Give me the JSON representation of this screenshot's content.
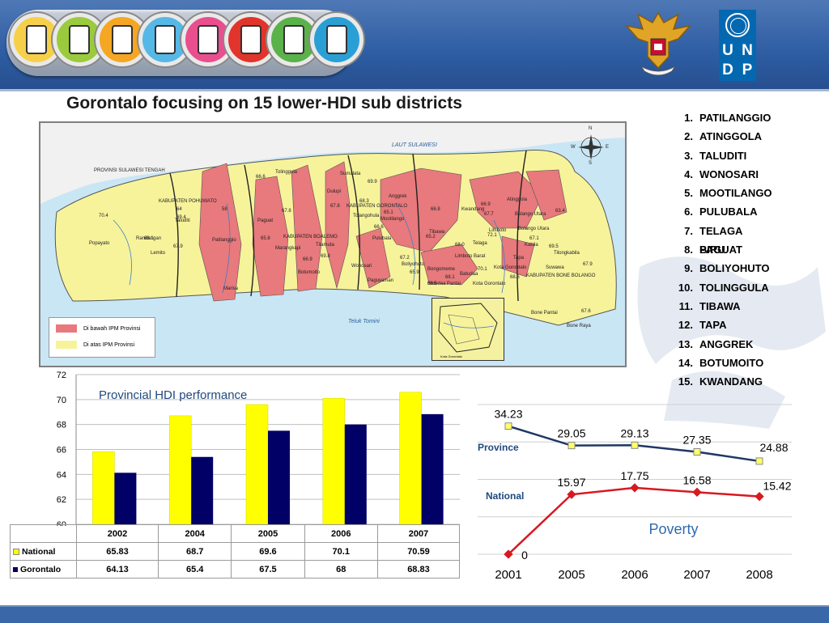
{
  "title": "Gorontalo focusing on 15 lower-HDI sub districts",
  "logos": {
    "undp_letters": [
      "U",
      "N",
      "D",
      "P"
    ],
    "mdg_icons": [
      "hunger-icon",
      "education-icon",
      "gender-icon",
      "child-health-icon",
      "maternal-health-icon",
      "disease-icon",
      "environment-icon",
      "partnership-icon"
    ]
  },
  "map": {
    "sea_label": "LAUT SULAWESI",
    "bay_label": "Teluk Tomini",
    "region_label": "PROVINSI SULAWESI TENGAH",
    "district_labels": [
      "KABUPATEN POHUWATO",
      "KABUPATEN BOALEMO",
      "KABUPATEN GORONTALO",
      "KABUPATEN BONE BOLANGO",
      "Kota Gorontalo"
    ],
    "subdistrict_labels": [
      "Tolinggula",
      "Sumalata",
      "Dulupi",
      "Anggrek",
      "Kwandang",
      "Atinggola",
      "Popayato",
      "Randangan",
      "Taluditi",
      "Paguat",
      "Marisa",
      "Lemito",
      "Patilanggio",
      "Marangkapi",
      "Tilamuta",
      "Botumoito",
      "Tolangohula",
      "Limboto",
      "Telaga",
      "Paguyaman",
      "Wonosari",
      "Mootilango",
      "Bolango Utara",
      "Tilongkabila",
      "Tapa",
      "Kabila",
      "Batudaa",
      "Suwawa",
      "Bone Pantai",
      "Bone Raya",
      "Bulango Utara",
      "Limboto Barat",
      "Bongomeme",
      "Tibawa",
      "Pulubala",
      "Boliyohuto",
      "Batudaa Pantai",
      "Kota Gorontalo"
    ],
    "ipm_values": [
      "70.4",
      "69.4",
      "64",
      "58",
      "68.1",
      "67.9",
      "66.6",
      "67.8",
      "65.8",
      "66.9",
      "69.8",
      "69.9",
      "67.8",
      "68.3",
      "65.1",
      "66.8",
      "66.9",
      "63.4",
      "65.2",
      "66.6",
      "72.1",
      "67.1",
      "70.1",
      "68.6",
      "65.9",
      "67.2",
      "69.5",
      "67.9",
      "67.6",
      "68.5",
      "67.7",
      "68.0",
      "68.1"
    ],
    "legend": [
      {
        "label": "Di bawah IPM Provinsi",
        "color": "#e8797c"
      },
      {
        "label": "Di atas IPM Provinsi",
        "color": "#f7f39b"
      }
    ],
    "compass": {
      "n": "N",
      "s": "S",
      "e": "E",
      "w": "W"
    }
  },
  "subdistricts": [
    {
      "num": "1.",
      "name": "PATILANGGIO"
    },
    {
      "num": "2.",
      "name": "ATINGGOLA"
    },
    {
      "num": "3.",
      "name": "TALUDITI"
    },
    {
      "num": "4.",
      "name": "WONOSARI"
    },
    {
      "num": "5.",
      "name": "MOOTILANGO"
    },
    {
      "num": "6.",
      "name": "PULUBALA"
    },
    {
      "num": "7.",
      "name": "TELAGA BIRU"
    },
    {
      "num": "8.",
      "name": "PAGUAT"
    },
    {
      "num": "9.",
      "name": "BOLIYOHUTO"
    },
    {
      "num": "10.",
      "name": "TOLINGGULA"
    },
    {
      "num": "11.",
      "name": "TIBAWA"
    },
    {
      "num": "12.",
      "name": "TAPA"
    },
    {
      "num": "13.",
      "name": "ANGGREK"
    },
    {
      "num": "14.",
      "name": "BOTUMOITO"
    },
    {
      "num": "15.",
      "name": "KWANDANG"
    }
  ],
  "chart_data": [
    {
      "type": "bar",
      "title": "Provincial HDI performance",
      "categories": [
        "2002",
        "2004",
        "2005",
        "2006",
        "2007"
      ],
      "series": [
        {
          "name": "National",
          "color": "#ffff00",
          "values": [
            65.83,
            68.7,
            69.6,
            70.1,
            70.59
          ]
        },
        {
          "name": "Gorontalo",
          "color": "#000066",
          "values": [
            64.13,
            65.4,
            67.5,
            68,
            68.83
          ]
        }
      ],
      "table_values": {
        "National": [
          "65.83",
          "68.7",
          "69.6",
          "70.1",
          "70.59"
        ],
        "Gorontalo": [
          "64.13",
          "65.4",
          "67.5",
          "68",
          "68.83"
        ]
      },
      "ylim": [
        60,
        72
      ],
      "yticks": [
        60,
        62,
        64,
        66,
        68,
        70,
        72
      ],
      "grid": true
    },
    {
      "type": "line",
      "title": "Poverty",
      "x": [
        "2001",
        "2005",
        "2006",
        "2007",
        "2008"
      ],
      "series": [
        {
          "name": "Province",
          "color": "#1f3864",
          "values": [
            34.23,
            29.05,
            29.13,
            27.35,
            24.88
          ],
          "labels": [
            "34.23",
            "29.05",
            "29.13",
            "27.35",
            "24.88"
          ]
        },
        {
          "name": "National",
          "color": "#d71920",
          "values": [
            0,
            15.97,
            17.75,
            16.58,
            15.42
          ],
          "labels": [
            "0",
            "15.97",
            "17.75",
            "16.58",
            "15.42"
          ]
        }
      ],
      "ylim": [
        0,
        40
      ],
      "grid": true
    }
  ]
}
